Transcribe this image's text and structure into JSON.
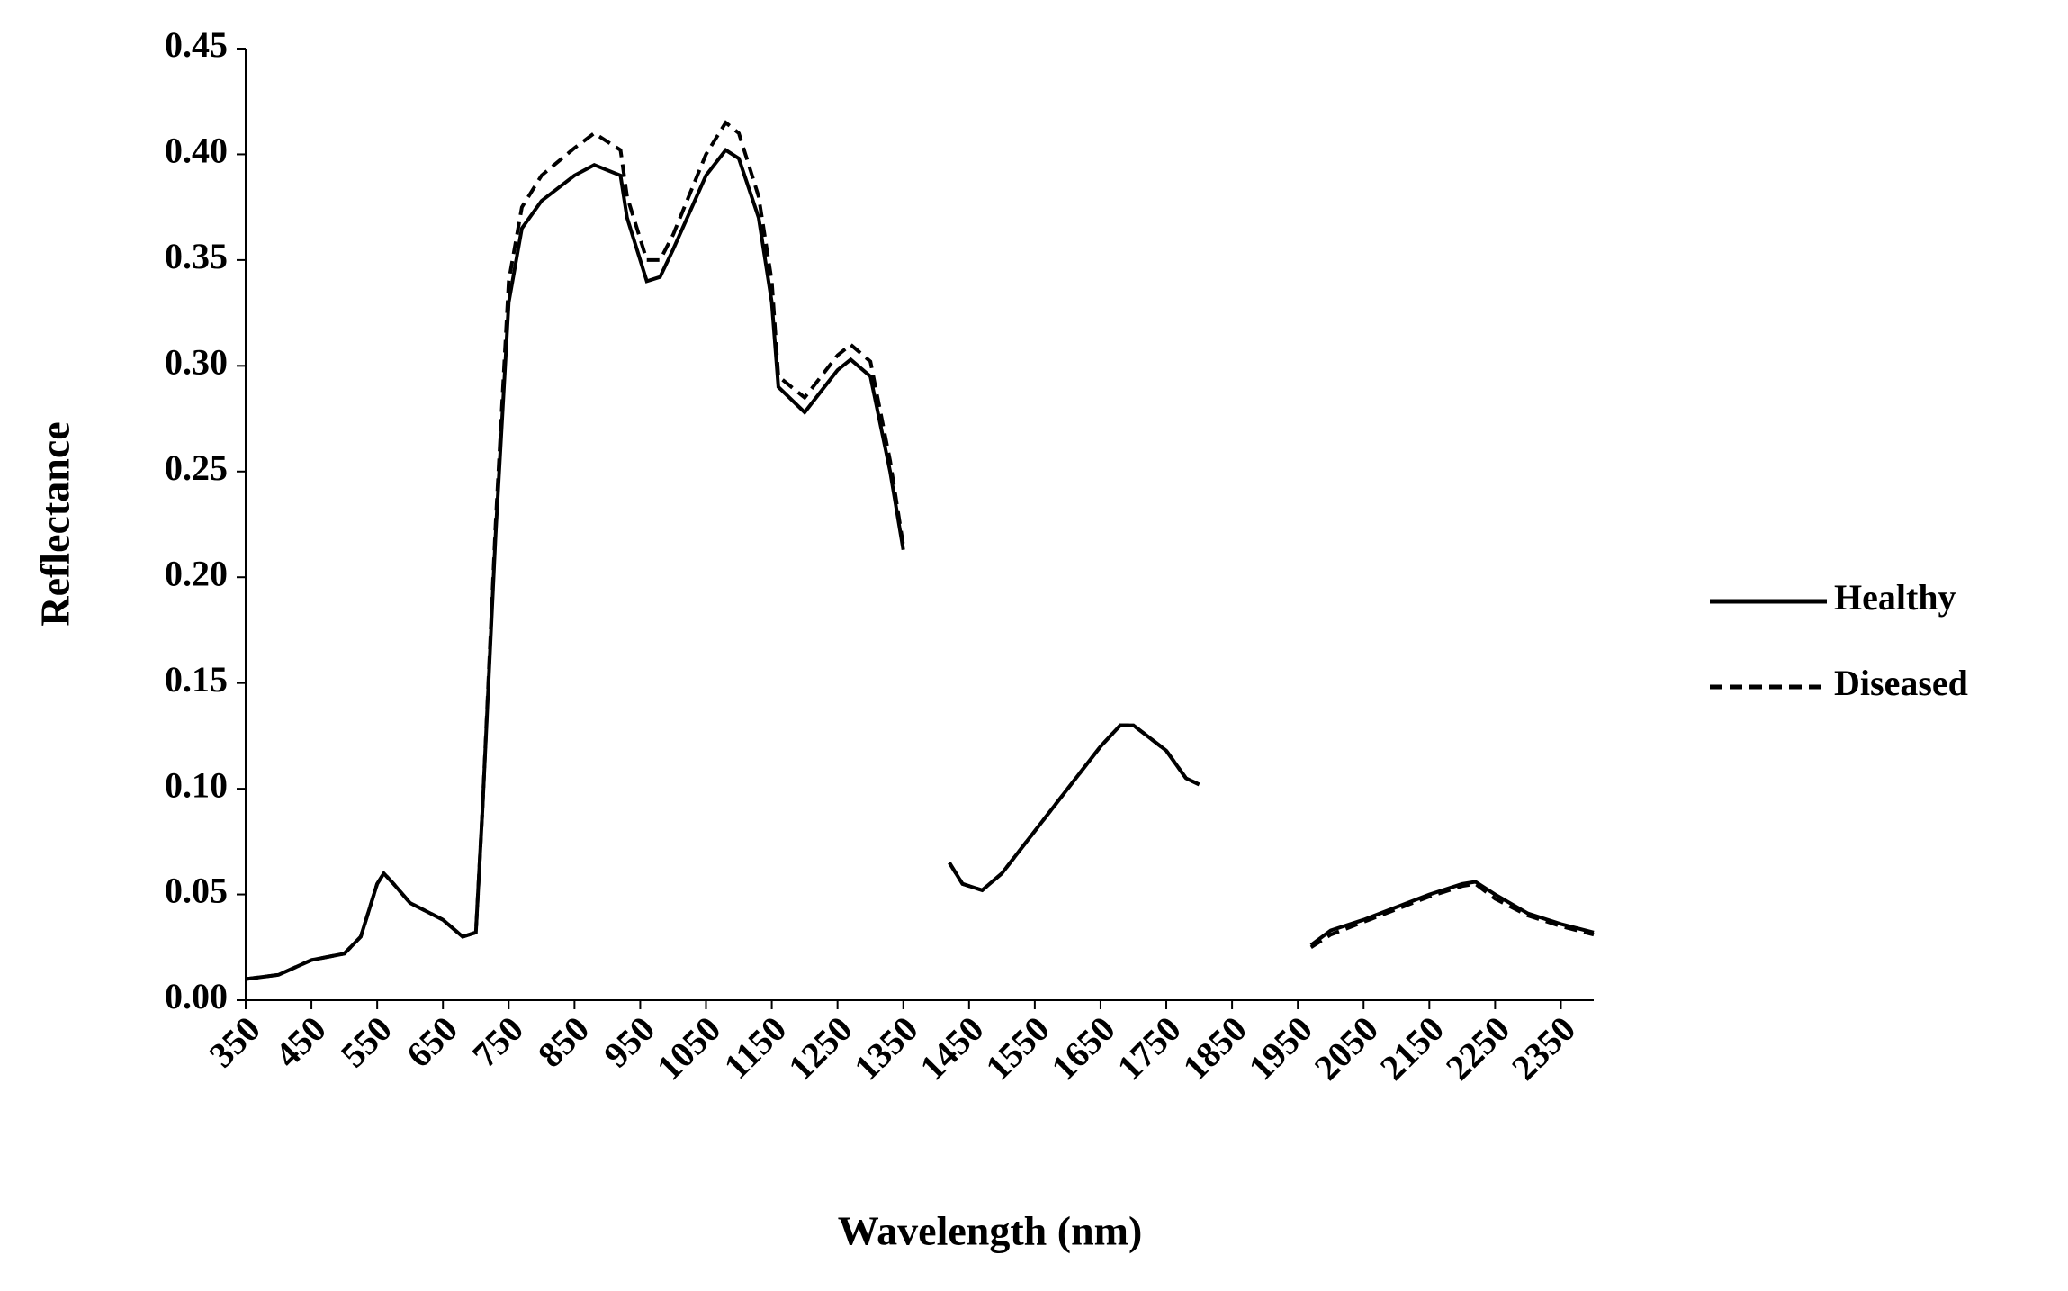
{
  "chart_data": {
    "type": "line",
    "xlabel": "Wavelength (nm)",
    "ylabel": "Reflectance",
    "x": [
      350,
      400,
      450,
      500,
      525,
      550,
      560,
      575,
      600,
      650,
      680,
      700,
      710,
      730,
      750,
      770,
      800,
      850,
      880,
      920,
      930,
      960,
      980,
      1000,
      1050,
      1080,
      1100,
      1130,
      1150,
      1160,
      1200,
      1250,
      1270,
      1300,
      1330,
      1350,
      1380,
      1420,
      1440,
      1470,
      1500,
      1550,
      1600,
      1650,
      1680,
      1700,
      1750,
      1780,
      1800,
      1880,
      1970,
      2000,
      2050,
      2100,
      2150,
      2200,
      2220,
      2250,
      2300,
      2350,
      2400
    ],
    "series": [
      {
        "name": "Healthy",
        "color": "#000000",
        "dash": "solid",
        "values": [
          0.01,
          0.012,
          0.019,
          0.022,
          0.03,
          0.055,
          0.06,
          0.055,
          0.046,
          0.038,
          0.03,
          0.032,
          0.09,
          0.22,
          0.33,
          0.365,
          0.378,
          0.39,
          0.395,
          0.39,
          0.37,
          0.34,
          0.342,
          0.355,
          0.39,
          0.402,
          0.398,
          0.37,
          0.33,
          0.29,
          0.278,
          0.298,
          0.303,
          0.295,
          0.25,
          0.213,
          null,
          0.065,
          0.055,
          0.052,
          0.06,
          0.08,
          0.1,
          0.12,
          0.13,
          0.13,
          0.118,
          0.105,
          0.102,
          null,
          0.026,
          0.033,
          0.038,
          0.044,
          0.05,
          0.055,
          0.056,
          0.05,
          0.041,
          0.036,
          0.032
        ]
      },
      {
        "name": "Diseased",
        "color": "#000000",
        "dash": "dashed",
        "values": [
          0.01,
          0.012,
          0.019,
          0.022,
          0.03,
          0.055,
          0.06,
          0.055,
          0.046,
          0.038,
          0.03,
          0.032,
          0.09,
          0.225,
          0.34,
          0.375,
          0.39,
          0.403,
          0.41,
          0.402,
          0.38,
          0.35,
          0.35,
          0.362,
          0.4,
          0.415,
          0.41,
          0.38,
          0.34,
          0.295,
          0.285,
          0.305,
          0.31,
          0.302,
          0.255,
          0.215,
          null,
          0.065,
          0.055,
          0.052,
          0.06,
          0.08,
          0.1,
          0.12,
          0.13,
          0.13,
          0.118,
          0.105,
          0.102,
          null,
          0.025,
          0.031,
          0.037,
          0.043,
          0.049,
          0.054,
          0.055,
          0.048,
          0.04,
          0.035,
          0.031
        ]
      }
    ],
    "xlim": [
      350,
      2400
    ],
    "xticks": [
      350,
      450,
      550,
      650,
      750,
      850,
      950,
      1050,
      1150,
      1250,
      1350,
      1450,
      1550,
      1650,
      1750,
      1850,
      1950,
      2050,
      2150,
      2250,
      2350
    ],
    "ylim": [
      0,
      0.45
    ],
    "yticks": [
      {
        "value": 0,
        "label": "0.00"
      },
      {
        "value": 0.05,
        "label": "0.05"
      },
      {
        "value": 0.1,
        "label": "0.10"
      },
      {
        "value": 0.15,
        "label": "0.15"
      },
      {
        "value": 0.2,
        "label": "0.20"
      },
      {
        "value": 0.25,
        "label": "0.25"
      },
      {
        "value": 0.3,
        "label": "0.30"
      },
      {
        "value": 0.35,
        "label": "0.35"
      },
      {
        "value": 0.4,
        "label": "0.40"
      },
      {
        "value": 0.45,
        "label": "0.45"
      }
    ],
    "grid": false,
    "legend": "right"
  }
}
